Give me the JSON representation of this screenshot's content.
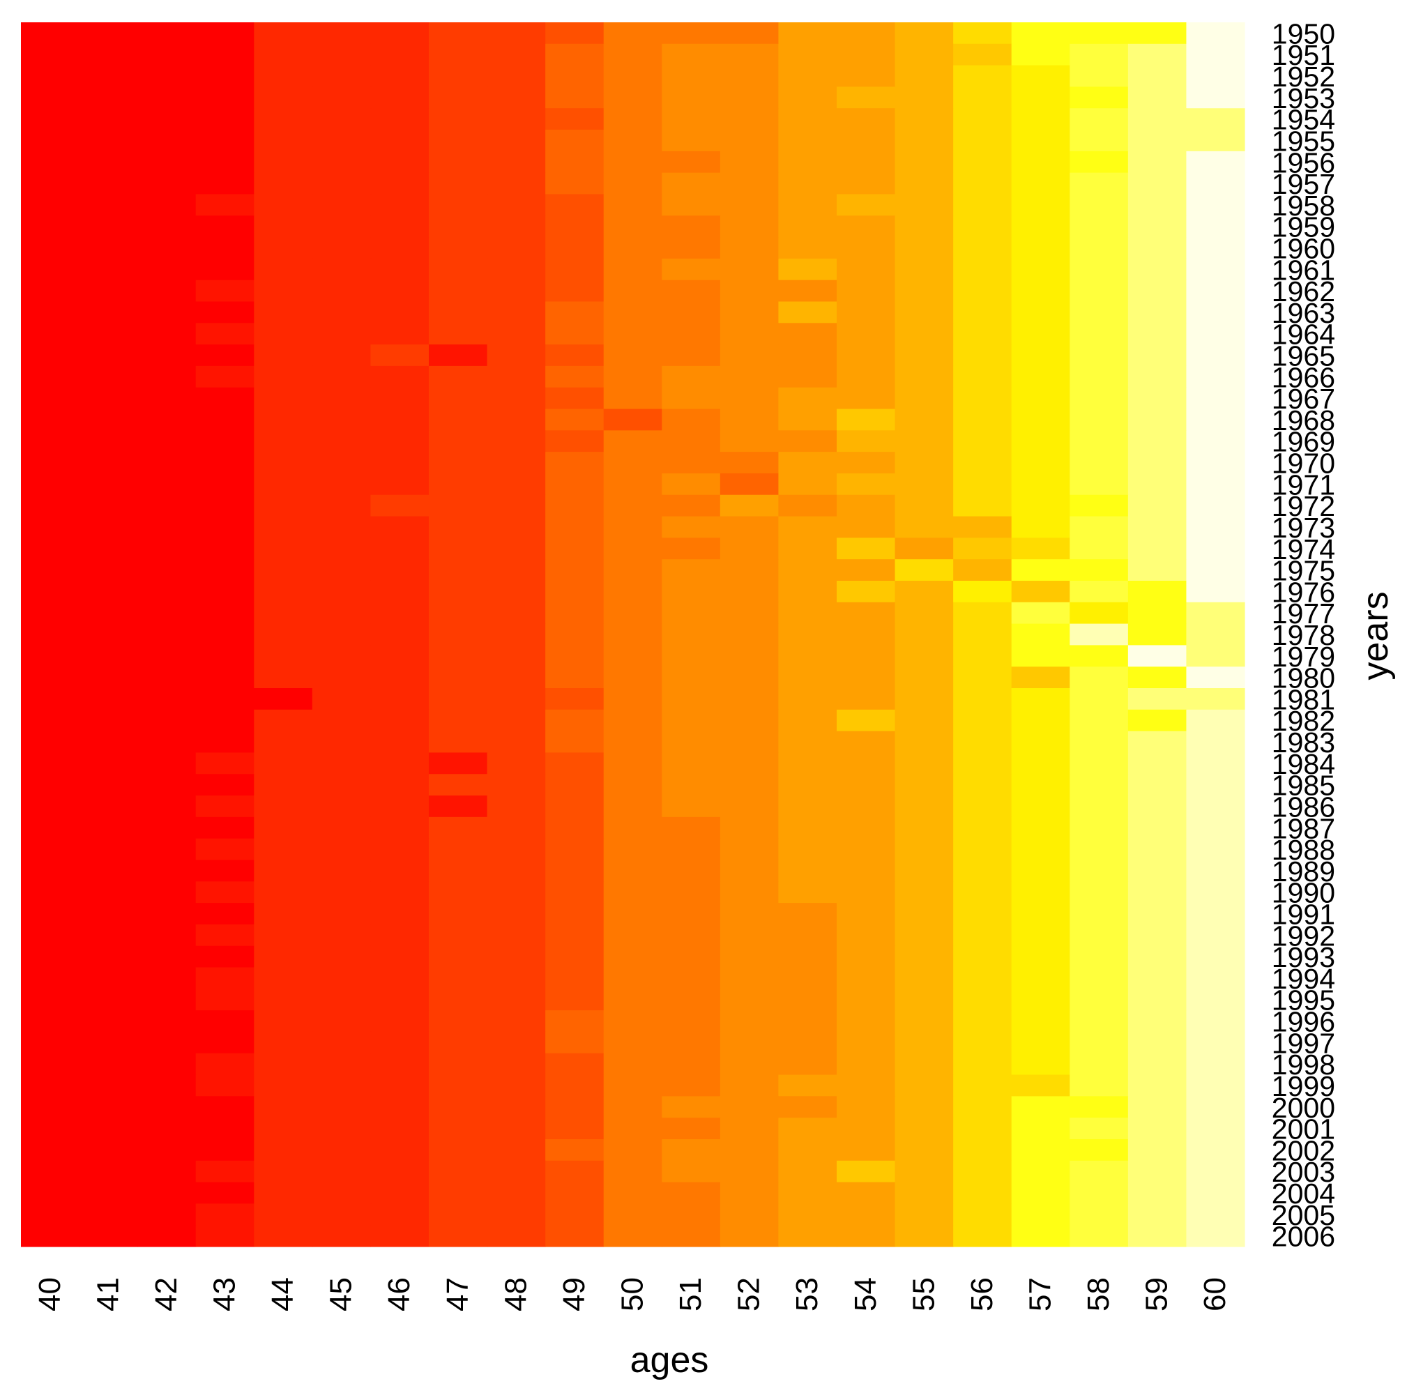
{
  "chart_data": {
    "type": "heatmap",
    "xlabel": "ages",
    "ylabel": "years",
    "x": [
      "40",
      "41",
      "42",
      "43",
      "44",
      "45",
      "46",
      "47",
      "48",
      "49",
      "50",
      "51",
      "52",
      "53",
      "54",
      "55",
      "56",
      "57",
      "58",
      "59",
      "60"
    ],
    "y": [
      "1950",
      "1951",
      "1952",
      "1953",
      "1954",
      "1955",
      "1956",
      "1957",
      "1958",
      "1959",
      "1960",
      "1961",
      "1962",
      "1963",
      "1964",
      "1965",
      "1966",
      "1967",
      "1968",
      "1969",
      "1970",
      "1971",
      "1972",
      "1973",
      "1974",
      "1975",
      "1976",
      "1977",
      "1978",
      "1979",
      "1980",
      "1981",
      "1982",
      "1983",
      "1984",
      "1985",
      "1986",
      "1987",
      "1988",
      "1989",
      "1990",
      "1991",
      "1992",
      "1993",
      "1994",
      "1995",
      "1996",
      "1997",
      "1998",
      "1999",
      "2000",
      "2001",
      "2002",
      "2003",
      "2004",
      "2005",
      "2006"
    ],
    "colorscale": "heat (red to pale yellow)",
    "palette": [
      "#FF0000",
      "#FF1400",
      "#FF2800",
      "#FF3C00",
      "#FF5000",
      "#FF6400",
      "#FF7800",
      "#FF8C00",
      "#FFA000",
      "#FFB400",
      "#FFC800",
      "#FFDC00",
      "#FFF000",
      "#FFFF14",
      "#FFFF3C",
      "#FFFF78",
      "#FFFFB4",
      "#FFFFE6"
    ],
    "base_row": [
      0,
      0,
      0,
      0,
      2,
      2,
      2,
      3,
      3,
      5,
      6,
      6,
      7,
      8,
      8,
      9,
      11,
      12,
      13,
      15,
      16
    ],
    "overrides": [
      [
        0,
        4,
        2
      ],
      [
        0,
        5,
        2
      ],
      [
        0,
        6,
        2
      ],
      [
        0,
        9,
        4
      ],
      [
        0,
        11,
        6
      ],
      [
        0,
        12,
        6
      ],
      [
        0,
        15,
        9
      ],
      [
        0,
        16,
        11
      ],
      [
        0,
        17,
        13
      ],
      [
        0,
        18,
        13
      ],
      [
        0,
        19,
        13
      ],
      [
        0,
        20,
        17
      ],
      [
        1,
        9,
        5
      ],
      [
        1,
        11,
        7
      ],
      [
        1,
        12,
        7
      ],
      [
        1,
        16,
        10
      ],
      [
        1,
        17,
        13
      ],
      [
        1,
        18,
        14
      ],
      [
        1,
        19,
        15
      ],
      [
        1,
        20,
        17
      ],
      [
        2,
        9,
        5
      ],
      [
        2,
        11,
        7
      ],
      [
        2,
        12,
        7
      ],
      [
        2,
        18,
        14
      ],
      [
        2,
        20,
        17
      ],
      [
        3,
        9,
        5
      ],
      [
        3,
        11,
        7
      ],
      [
        3,
        12,
        7
      ],
      [
        3,
        14,
        9
      ],
      [
        3,
        18,
        13
      ],
      [
        3,
        20,
        17
      ],
      [
        4,
        9,
        4
      ],
      [
        4,
        11,
        7
      ],
      [
        4,
        12,
        7
      ],
      [
        4,
        18,
        14
      ],
      [
        4,
        20,
        15
      ],
      [
        5,
        9,
        5
      ],
      [
        5,
        11,
        7
      ],
      [
        5,
        12,
        7
      ],
      [
        5,
        18,
        14
      ],
      [
        5,
        20,
        15
      ],
      [
        6,
        9,
        5
      ],
      [
        6,
        11,
        6
      ],
      [
        6,
        12,
        7
      ],
      [
        6,
        18,
        13
      ],
      [
        6,
        20,
        17
      ],
      [
        7,
        9,
        5
      ],
      [
        7,
        11,
        7
      ],
      [
        7,
        12,
        7
      ],
      [
        7,
        18,
        14
      ],
      [
        7,
        20,
        17
      ],
      [
        8,
        3,
        1
      ],
      [
        8,
        9,
        4
      ],
      [
        8,
        11,
        7
      ],
      [
        8,
        12,
        7
      ],
      [
        8,
        14,
        9
      ],
      [
        8,
        18,
        14
      ],
      [
        8,
        20,
        17
      ],
      [
        9,
        9,
        4
      ],
      [
        9,
        11,
        6
      ],
      [
        9,
        12,
        7
      ],
      [
        9,
        18,
        14
      ],
      [
        9,
        20,
        17
      ],
      [
        10,
        9,
        4
      ],
      [
        10,
        11,
        6
      ],
      [
        10,
        12,
        7
      ],
      [
        10,
        18,
        14
      ],
      [
        10,
        20,
        17
      ],
      [
        11,
        9,
        4
      ],
      [
        11,
        11,
        7
      ],
      [
        11,
        12,
        7
      ],
      [
        11,
        13,
        9
      ],
      [
        11,
        18,
        14
      ],
      [
        11,
        20,
        17
      ],
      [
        12,
        3,
        1
      ],
      [
        12,
        9,
        4
      ],
      [
        12,
        11,
        6
      ],
      [
        12,
        12,
        7
      ],
      [
        12,
        13,
        7
      ],
      [
        12,
        18,
        14
      ],
      [
        12,
        20,
        17
      ],
      [
        13,
        9,
        5
      ],
      [
        13,
        11,
        6
      ],
      [
        13,
        12,
        7
      ],
      [
        13,
        13,
        9
      ],
      [
        13,
        18,
        14
      ],
      [
        13,
        20,
        17
      ],
      [
        14,
        3,
        1
      ],
      [
        14,
        9,
        5
      ],
      [
        14,
        11,
        6
      ],
      [
        14,
        12,
        7
      ],
      [
        14,
        13,
        7
      ],
      [
        14,
        18,
        14
      ],
      [
        14,
        20,
        17
      ],
      [
        15,
        3,
        0
      ],
      [
        15,
        6,
        3
      ],
      [
        15,
        7,
        1
      ],
      [
        15,
        9,
        4
      ],
      [
        15,
        11,
        6
      ],
      [
        15,
        12,
        7
      ],
      [
        15,
        13,
        7
      ],
      [
        15,
        18,
        14
      ],
      [
        15,
        20,
        17
      ],
      [
        16,
        3,
        1
      ],
      [
        16,
        9,
        5
      ],
      [
        16,
        11,
        7
      ],
      [
        16,
        12,
        7
      ],
      [
        16,
        13,
        7
      ],
      [
        16,
        18,
        14
      ],
      [
        16,
        20,
        17
      ],
      [
        17,
        9,
        4
      ],
      [
        17,
        11,
        7
      ],
      [
        17,
        12,
        7
      ],
      [
        17,
        13,
        8
      ],
      [
        17,
        18,
        14
      ],
      [
        17,
        20,
        17
      ],
      [
        18,
        9,
        5
      ],
      [
        18,
        10,
        4
      ],
      [
        18,
        11,
        6
      ],
      [
        18,
        12,
        7
      ],
      [
        18,
        13,
        8
      ],
      [
        18,
        14,
        10
      ],
      [
        18,
        18,
        14
      ],
      [
        18,
        20,
        17
      ],
      [
        19,
        9,
        4
      ],
      [
        19,
        11,
        6
      ],
      [
        19,
        12,
        7
      ],
      [
        19,
        13,
        7
      ],
      [
        19,
        14,
        9
      ],
      [
        19,
        18,
        14
      ],
      [
        19,
        20,
        17
      ],
      [
        20,
        9,
        5
      ],
      [
        20,
        11,
        6
      ],
      [
        20,
        12,
        6
      ],
      [
        20,
        13,
        8
      ],
      [
        20,
        18,
        14
      ],
      [
        20,
        20,
        17
      ],
      [
        21,
        9,
        5
      ],
      [
        21,
        11,
        7
      ],
      [
        21,
        12,
        5
      ],
      [
        21,
        13,
        8
      ],
      [
        21,
        14,
        9
      ],
      [
        21,
        18,
        14
      ],
      [
        21,
        20,
        17
      ],
      [
        22,
        6,
        3
      ],
      [
        22,
        9,
        5
      ],
      [
        22,
        11,
        6
      ],
      [
        22,
        12,
        8
      ],
      [
        22,
        13,
        7
      ],
      [
        22,
        18,
        13
      ],
      [
        22,
        20,
        17
      ],
      [
        23,
        9,
        5
      ],
      [
        23,
        11,
        7
      ],
      [
        23,
        12,
        7
      ],
      [
        23,
        16,
        9
      ],
      [
        23,
        18,
        14
      ],
      [
        23,
        20,
        17
      ],
      [
        24,
        9,
        5
      ],
      [
        24,
        11,
        6
      ],
      [
        24,
        12,
        7
      ],
      [
        24,
        14,
        10
      ],
      [
        24,
        15,
        8
      ],
      [
        24,
        16,
        10
      ],
      [
        24,
        17,
        11
      ],
      [
        24,
        18,
        14
      ],
      [
        24,
        20,
        17
      ],
      [
        25,
        9,
        5
      ],
      [
        25,
        11,
        7
      ],
      [
        25,
        12,
        7
      ],
      [
        25,
        14,
        8
      ],
      [
        25,
        15,
        11
      ],
      [
        25,
        16,
        9
      ],
      [
        25,
        17,
        13
      ],
      [
        25,
        18,
        13
      ],
      [
        25,
        20,
        17
      ],
      [
        26,
        9,
        5
      ],
      [
        26,
        11,
        7
      ],
      [
        26,
        12,
        7
      ],
      [
        26,
        14,
        10
      ],
      [
        26,
        15,
        9
      ],
      [
        26,
        16,
        12
      ],
      [
        26,
        17,
        10
      ],
      [
        26,
        18,
        14
      ],
      [
        26,
        19,
        13
      ],
      [
        26,
        20,
        17
      ],
      [
        27,
        9,
        5
      ],
      [
        27,
        11,
        7
      ],
      [
        27,
        12,
        7
      ],
      [
        27,
        17,
        14
      ],
      [
        27,
        18,
        12
      ],
      [
        27,
        19,
        13
      ],
      [
        27,
        20,
        15
      ],
      [
        28,
        9,
        5
      ],
      [
        28,
        11,
        7
      ],
      [
        28,
        12,
        7
      ],
      [
        28,
        17,
        13
      ],
      [
        28,
        18,
        16
      ],
      [
        28,
        19,
        13
      ],
      [
        28,
        20,
        15
      ],
      [
        29,
        9,
        5
      ],
      [
        29,
        11,
        7
      ],
      [
        29,
        12,
        7
      ],
      [
        29,
        17,
        13
      ],
      [
        29,
        18,
        13
      ],
      [
        29,
        19,
        17
      ],
      [
        29,
        20,
        15
      ],
      [
        30,
        9,
        5
      ],
      [
        30,
        11,
        7
      ],
      [
        30,
        12,
        7
      ],
      [
        30,
        17,
        10
      ],
      [
        30,
        18,
        14
      ],
      [
        30,
        19,
        13
      ],
      [
        30,
        20,
        17
      ],
      [
        31,
        4,
        0
      ],
      [
        31,
        9,
        4
      ],
      [
        31,
        11,
        7
      ],
      [
        31,
        12,
        7
      ],
      [
        31,
        18,
        14
      ],
      [
        31,
        19,
        15
      ],
      [
        31,
        20,
        15
      ],
      [
        32,
        9,
        5
      ],
      [
        32,
        11,
        7
      ],
      [
        32,
        12,
        7
      ],
      [
        32,
        14,
        10
      ],
      [
        32,
        18,
        14
      ],
      [
        32,
        19,
        13
      ],
      [
        33,
        9,
        5
      ],
      [
        33,
        11,
        7
      ],
      [
        33,
        12,
        7
      ],
      [
        33,
        18,
        14
      ],
      [
        34,
        3,
        1
      ],
      [
        34,
        7,
        1
      ],
      [
        34,
        9,
        4
      ],
      [
        34,
        11,
        7
      ],
      [
        34,
        12,
        7
      ],
      [
        34,
        18,
        14
      ],
      [
        35,
        9,
        4
      ],
      [
        35,
        11,
        7
      ],
      [
        35,
        12,
        7
      ],
      [
        35,
        18,
        14
      ],
      [
        36,
        3,
        1
      ],
      [
        36,
        7,
        1
      ],
      [
        36,
        9,
        4
      ],
      [
        36,
        11,
        7
      ],
      [
        36,
        12,
        7
      ],
      [
        36,
        18,
        14
      ],
      [
        37,
        9,
        4
      ],
      [
        37,
        11,
        6
      ],
      [
        37,
        12,
        7
      ],
      [
        37,
        18,
        14
      ],
      [
        38,
        3,
        1
      ],
      [
        38,
        9,
        4
      ],
      [
        38,
        11,
        6
      ],
      [
        38,
        12,
        7
      ],
      [
        38,
        18,
        14
      ],
      [
        39,
        9,
        4
      ],
      [
        39,
        11,
        6
      ],
      [
        39,
        12,
        7
      ],
      [
        39,
        18,
        14
      ],
      [
        40,
        3,
        1
      ],
      [
        40,
        9,
        4
      ],
      [
        40,
        11,
        6
      ],
      [
        40,
        12,
        7
      ],
      [
        40,
        18,
        14
      ],
      [
        41,
        3,
        0
      ],
      [
        41,
        9,
        4
      ],
      [
        41,
        11,
        6
      ],
      [
        41,
        12,
        7
      ],
      [
        41,
        13,
        7
      ],
      [
        41,
        18,
        14
      ],
      [
        42,
        3,
        1
      ],
      [
        42,
        9,
        4
      ],
      [
        42,
        11,
        6
      ],
      [
        42,
        12,
        7
      ],
      [
        42,
        13,
        7
      ],
      [
        42,
        18,
        14
      ],
      [
        43,
        9,
        4
      ],
      [
        43,
        11,
        6
      ],
      [
        43,
        12,
        7
      ],
      [
        43,
        13,
        7
      ],
      [
        43,
        18,
        14
      ],
      [
        44,
        3,
        1
      ],
      [
        44,
        9,
        4
      ],
      [
        44,
        11,
        6
      ],
      [
        44,
        12,
        7
      ],
      [
        44,
        13,
        7
      ],
      [
        44,
        18,
        14
      ],
      [
        45,
        3,
        1
      ],
      [
        45,
        9,
        4
      ],
      [
        45,
        11,
        6
      ],
      [
        45,
        12,
        7
      ],
      [
        45,
        13,
        7
      ],
      [
        45,
        18,
        14
      ],
      [
        46,
        9,
        5
      ],
      [
        46,
        11,
        6
      ],
      [
        46,
        12,
        7
      ],
      [
        46,
        13,
        7
      ],
      [
        46,
        18,
        14
      ],
      [
        47,
        9,
        5
      ],
      [
        47,
        11,
        6
      ],
      [
        47,
        12,
        7
      ],
      [
        47,
        13,
        7
      ],
      [
        47,
        18,
        14
      ],
      [
        48,
        3,
        1
      ],
      [
        48,
        9,
        4
      ],
      [
        48,
        11,
        6
      ],
      [
        48,
        12,
        7
      ],
      [
        48,
        13,
        7
      ],
      [
        48,
        18,
        14
      ],
      [
        49,
        3,
        1
      ],
      [
        49,
        9,
        4
      ],
      [
        49,
        11,
        6
      ],
      [
        49,
        12,
        7
      ],
      [
        49,
        13,
        8
      ],
      [
        49,
        17,
        11
      ],
      [
        49,
        18,
        14
      ],
      [
        50,
        9,
        4
      ],
      [
        50,
        11,
        7
      ],
      [
        50,
        12,
        7
      ],
      [
        50,
        13,
        7
      ],
      [
        50,
        17,
        13
      ],
      [
        50,
        18,
        13
      ],
      [
        51,
        9,
        4
      ],
      [
        51,
        11,
        6
      ],
      [
        51,
        12,
        7
      ],
      [
        51,
        17,
        13
      ],
      [
        51,
        18,
        14
      ],
      [
        52,
        9,
        5
      ],
      [
        52,
        11,
        7
      ],
      [
        52,
        12,
        7
      ],
      [
        52,
        17,
        13
      ],
      [
        52,
        18,
        13
      ],
      [
        53,
        3,
        1
      ],
      [
        53,
        9,
        4
      ],
      [
        53,
        11,
        7
      ],
      [
        53,
        12,
        7
      ],
      [
        53,
        14,
        10
      ],
      [
        53,
        17,
        13
      ],
      [
        53,
        18,
        14
      ],
      [
        54,
        9,
        4
      ],
      [
        54,
        11,
        6
      ],
      [
        54,
        12,
        7
      ],
      [
        54,
        17,
        13
      ],
      [
        54,
        18,
        14
      ],
      [
        55,
        3,
        1
      ],
      [
        55,
        9,
        4
      ],
      [
        55,
        11,
        6
      ],
      [
        55,
        12,
        7
      ],
      [
        55,
        17,
        13
      ],
      [
        55,
        18,
        14
      ],
      [
        56,
        3,
        1
      ],
      [
        56,
        9,
        4
      ],
      [
        56,
        11,
        6
      ],
      [
        56,
        12,
        7
      ],
      [
        56,
        17,
        13
      ],
      [
        56,
        18,
        14
      ]
    ]
  }
}
